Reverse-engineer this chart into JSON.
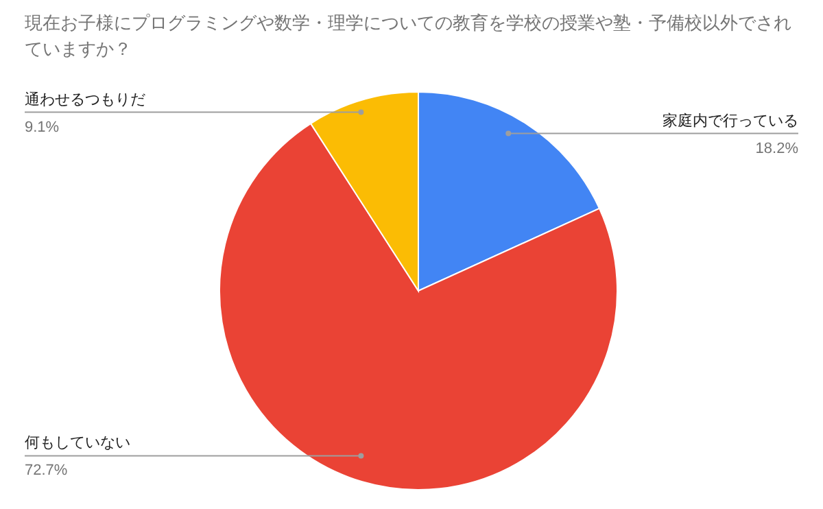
{
  "chart_data": {
    "type": "pie",
    "title": "現在お子様にプログラミングや数学・理学についての教育を学校の授業や塾・予備校以外でされていますか？",
    "categories": [
      "家庭内で行っている",
      "何もしていない",
      "通わせるつもりだ"
    ],
    "values": [
      18.2,
      72.7,
      9.1
    ],
    "colors": [
      "#4285f4",
      "#ea4335",
      "#fbbc04"
    ],
    "value_labels": [
      "18.2%",
      "72.7%",
      "9.1%"
    ]
  }
}
